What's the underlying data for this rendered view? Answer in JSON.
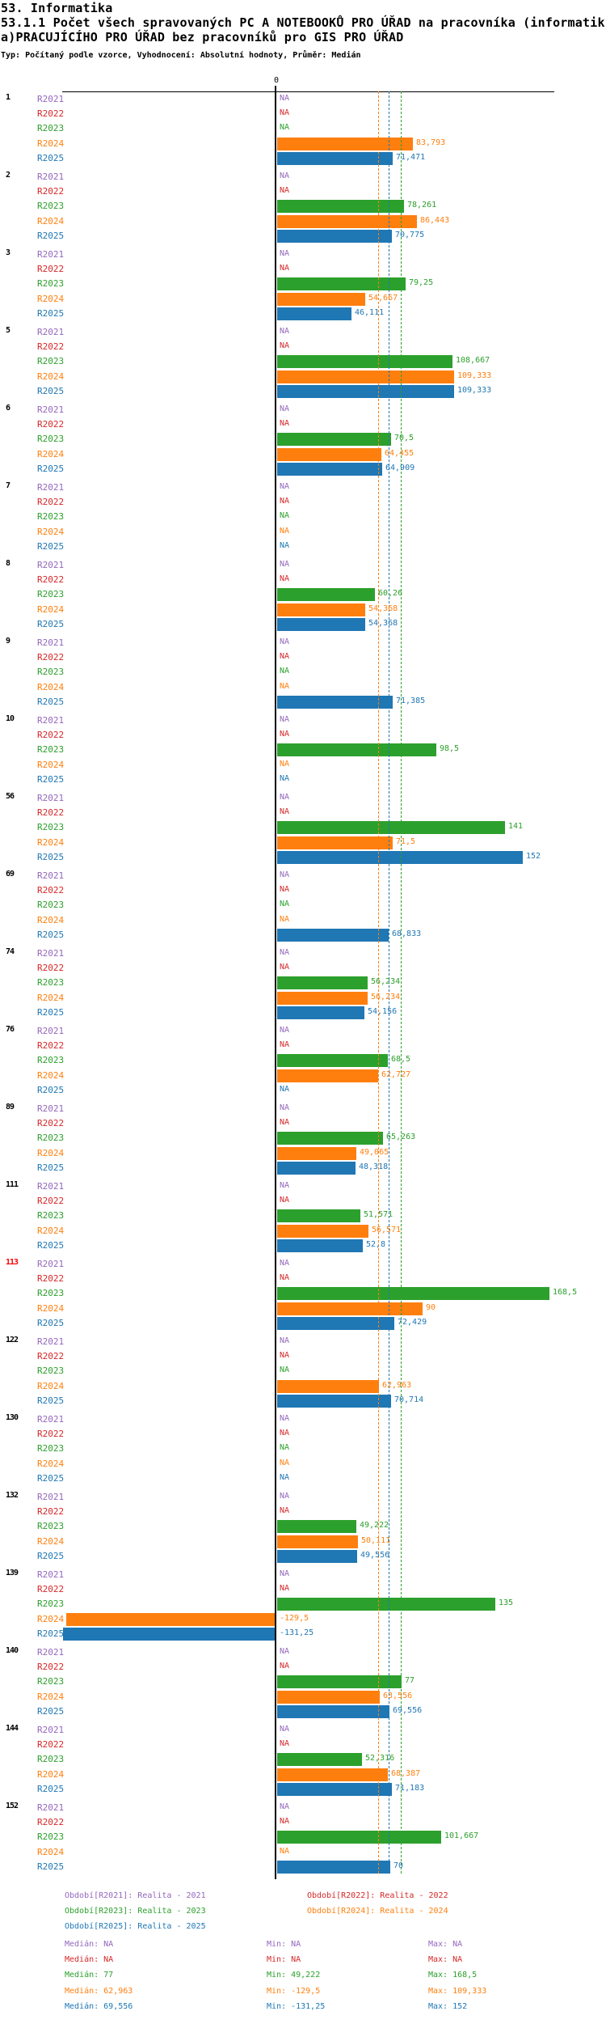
{
  "header": {
    "title_line1": "53. Informatika",
    "title_line2": "53.1.1 Počet všech spravovaných PC A NOTEBOOKŮ PRO ÚŘAD na pracovníka (informatik",
    "title_line3": "a)PRACUJÍCÍHO PRO ÚŘAD bez pracovníků pro GIS PRO ÚŘAD",
    "subtitle": "Typ: Počítaný podle vzorce, Vyhodnocení: Absolutní hodnoty, Průměr: Medián"
  },
  "chart_data": {
    "type": "bar",
    "orientation": "horizontal",
    "axis": {
      "zero_label": "0"
    },
    "series_labels": [
      "R2021",
      "R2022",
      "R2023",
      "R2024",
      "R2025"
    ],
    "colors": {
      "R2021": "#9467bd",
      "R2022": "#d62728",
      "R2023": "#2ca02c",
      "R2024": "#ff7f0e",
      "R2025": "#1f77b4"
    },
    "na_text": "NA",
    "groups": [
      {
        "id": "1",
        "values": [
          null,
          null,
          null,
          83.793,
          71.471
        ],
        "labels": [
          "NA",
          "NA",
          "NA",
          "83,793",
          "71,471"
        ]
      },
      {
        "id": "2",
        "values": [
          null,
          null,
          78.261,
          86.443,
          70.775
        ],
        "labels": [
          "NA",
          "NA",
          "78,261",
          "86,443",
          "70,775"
        ]
      },
      {
        "id": "3",
        "values": [
          null,
          null,
          79.25,
          54.667,
          46.111
        ],
        "labels": [
          "NA",
          "NA",
          "79,25",
          "54,667",
          "46,111"
        ]
      },
      {
        "id": "5",
        "values": [
          null,
          null,
          108.667,
          109.333,
          109.333
        ],
        "labels": [
          "NA",
          "NA",
          "108,667",
          "109,333",
          "109,333"
        ]
      },
      {
        "id": "6",
        "values": [
          null,
          null,
          70.5,
          64.455,
          64.909
        ],
        "labels": [
          "NA",
          "NA",
          "70,5",
          "64,455",
          "64,909"
        ]
      },
      {
        "id": "7",
        "values": [
          null,
          null,
          null,
          null,
          null
        ],
        "labels": [
          "NA",
          "NA",
          "NA",
          "NA",
          "NA"
        ]
      },
      {
        "id": "8",
        "values": [
          null,
          null,
          60.26,
          54.368,
          54.368
        ],
        "labels": [
          "NA",
          "NA",
          "60,26",
          "54,368",
          "54,368"
        ]
      },
      {
        "id": "9",
        "values": [
          null,
          null,
          null,
          null,
          71.385
        ],
        "labels": [
          "NA",
          "NA",
          "NA",
          "NA",
          "71,385"
        ]
      },
      {
        "id": "10",
        "values": [
          null,
          null,
          98.5,
          null,
          null
        ],
        "labels": [
          "NA",
          "NA",
          "98,5",
          "NA",
          "NA"
        ]
      },
      {
        "id": "56",
        "values": [
          null,
          null,
          141,
          71.5,
          152
        ],
        "labels": [
          "NA",
          "NA",
          "141",
          "71,5",
          "152"
        ]
      },
      {
        "id": "69",
        "values": [
          null,
          null,
          null,
          null,
          68.833
        ],
        "labels": [
          "NA",
          "NA",
          "NA",
          "NA",
          "68,833"
        ]
      },
      {
        "id": "74",
        "values": [
          null,
          null,
          56.234,
          56.234,
          54.156
        ],
        "labels": [
          "NA",
          "NA",
          "56,234",
          "56,234",
          "54,156"
        ]
      },
      {
        "id": "76",
        "values": [
          null,
          null,
          68.5,
          62.727,
          null
        ],
        "labels": [
          "NA",
          "NA",
          "68,5",
          "62,727",
          "NA"
        ]
      },
      {
        "id": "89",
        "values": [
          null,
          null,
          65.263,
          49.065,
          48.318
        ],
        "labels": [
          "NA",
          "NA",
          "65,263",
          "49,065",
          "48,318"
        ]
      },
      {
        "id": "111",
        "values": [
          null,
          null,
          51.571,
          56.571,
          52.8
        ],
        "labels": [
          "NA",
          "NA",
          "51,571",
          "56,571",
          "52,8"
        ]
      },
      {
        "id": "113",
        "values": [
          null,
          null,
          168.5,
          90,
          72.429
        ],
        "labels": [
          "NA",
          "NA",
          "168,5",
          "90",
          "72,429"
        ],
        "label_color": "#ff0000"
      },
      {
        "id": "122",
        "values": [
          null,
          null,
          null,
          62.963,
          70.714
        ],
        "labels": [
          "NA",
          "NA",
          "NA",
          "62,963",
          "70,714"
        ]
      },
      {
        "id": "130",
        "values": [
          null,
          null,
          null,
          null,
          null
        ],
        "labels": [
          "NA",
          "NA",
          "NA",
          "NA",
          "NA"
        ]
      },
      {
        "id": "132",
        "values": [
          null,
          null,
          49.222,
          50.111,
          49.556
        ],
        "labels": [
          "NA",
          "NA",
          "49,222",
          "50,111",
          "49,556"
        ]
      },
      {
        "id": "139",
        "values": [
          null,
          null,
          135,
          -129.5,
          -131.25
        ],
        "labels": [
          "NA",
          "NA",
          "135",
          "-129,5",
          "-131,25"
        ]
      },
      {
        "id": "140",
        "values": [
          null,
          null,
          77,
          63.556,
          69.556
        ],
        "labels": [
          "NA",
          "NA",
          "77",
          "63,556",
          "69,556"
        ]
      },
      {
        "id": "144",
        "values": [
          null,
          null,
          52.316,
          68.387,
          71.183
        ],
        "labels": [
          "NA",
          "NA",
          "52,316",
          "68,387",
          "71,183"
        ]
      },
      {
        "id": "152",
        "values": [
          null,
          null,
          101.667,
          null,
          70
        ],
        "labels": [
          "NA",
          "NA",
          "101,667",
          "NA",
          "70"
        ]
      }
    ],
    "median_lines": {
      "R2023": 77,
      "R2024": 62.963,
      "R2025": 69.556
    }
  },
  "legend": {
    "items": [
      {
        "series": "R2021",
        "text": "Období[R2021]: Realita - 2021"
      },
      {
        "series": "R2022",
        "text": "Období[R2022]: Realita - 2022"
      },
      {
        "series": "R2023",
        "text": "Období[R2023]: Realita - 2023"
      },
      {
        "series": "R2024",
        "text": "Období[R2024]: Realita - 2024"
      },
      {
        "series": "R2025",
        "text": "Období[R2025]: Realita - 2025"
      }
    ]
  },
  "stats": {
    "rows": [
      {
        "series": "R2021",
        "median": "Medián: NA",
        "min": "Min: NA",
        "max": "Max: NA"
      },
      {
        "series": "R2022",
        "median": "Medián: NA",
        "min": "Min: NA",
        "max": "Max: NA"
      },
      {
        "series": "R2023",
        "median": "Medián: 77",
        "min": "Min: 49,222",
        "max": "Max: 168,5"
      },
      {
        "series": "R2024",
        "median": "Medián: 62,963",
        "min": "Min: -129,5",
        "max": "Max: 109,333"
      },
      {
        "series": "R2025",
        "median": "Medián: 69,556",
        "min": "Min: -131,25",
        "max": "Max: 152"
      }
    ]
  }
}
